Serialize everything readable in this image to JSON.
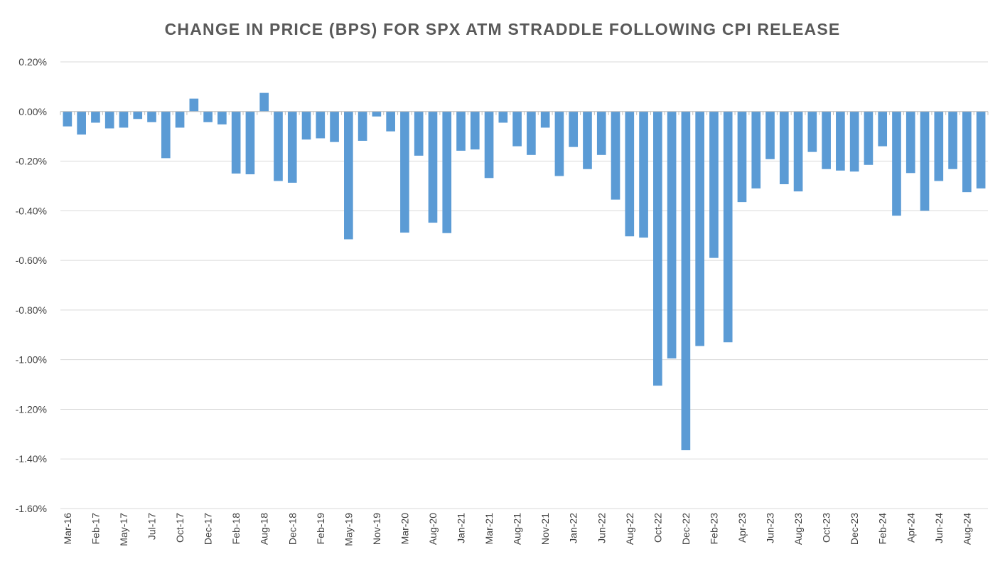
{
  "chart_data": {
    "type": "bar",
    "title": "CHANGE IN PRICE (BPS) FOR SPX ATM STRADDLE FOLLOWING CPI RELEASE",
    "xlabel": "",
    "ylabel": "",
    "ylim": [
      -0.016,
      0.002
    ],
    "y_tick_labels": [
      "0.20%",
      "0.00%",
      "-0.20%",
      "-0.40%",
      "-0.60%",
      "-0.80%",
      "-1.00%",
      "-1.20%",
      "-1.40%",
      "-1.60%"
    ],
    "x_tick_labels": [
      "Mar-16",
      "Feb-17",
      "May-17",
      "Jul-17",
      "Oct-17",
      "Dec-17",
      "Feb-18",
      "Aug-18",
      "Dec-18",
      "Feb-19",
      "May-19",
      "Nov-19",
      "Mar-20",
      "Aug-20",
      "Jan-21",
      "Mar-21",
      "Aug-21",
      "Nov-21",
      "Jan-22",
      "Jun-22",
      "Aug-22",
      "Oct-22",
      "Dec-22",
      "Feb-23",
      "Apr-23",
      "Jun-23",
      "Aug-23",
      "Oct-23",
      "Dec-23",
      "Feb-24",
      "Apr-24",
      "Jun-24",
      "Aug-24"
    ],
    "x_tick_every": 2,
    "grid": true,
    "bar_color": "#5B9BD5",
    "values": [
      -0.0006,
      -0.00093,
      -0.00045,
      -0.00068,
      -0.00065,
      -0.0003,
      -0.00043,
      -0.00188,
      -0.00065,
      0.00052,
      -0.00043,
      -0.00052,
      -0.0025,
      -0.00253,
      0.00075,
      -0.0028,
      -0.00287,
      -0.00113,
      -0.00108,
      -0.00123,
      -0.00515,
      -0.00118,
      -0.0002,
      -0.0008,
      -0.00488,
      -0.00178,
      -0.00448,
      -0.0049,
      -0.00158,
      -0.00153,
      -0.00268,
      -0.00045,
      -0.0014,
      -0.00175,
      -0.00065,
      -0.0026,
      -0.00143,
      -0.00232,
      -0.00175,
      -0.00355,
      -0.00503,
      -0.00508,
      -0.01105,
      -0.00995,
      -0.01365,
      -0.00945,
      -0.0059,
      -0.0093,
      -0.00365,
      -0.0031,
      -0.00192,
      -0.00293,
      -0.00322,
      -0.00163,
      -0.00232,
      -0.00238,
      -0.00242,
      -0.00215,
      -0.0014,
      -0.0042,
      -0.00248,
      -0.004,
      -0.0028,
      -0.00232,
      -0.00325,
      -0.0031
    ]
  }
}
